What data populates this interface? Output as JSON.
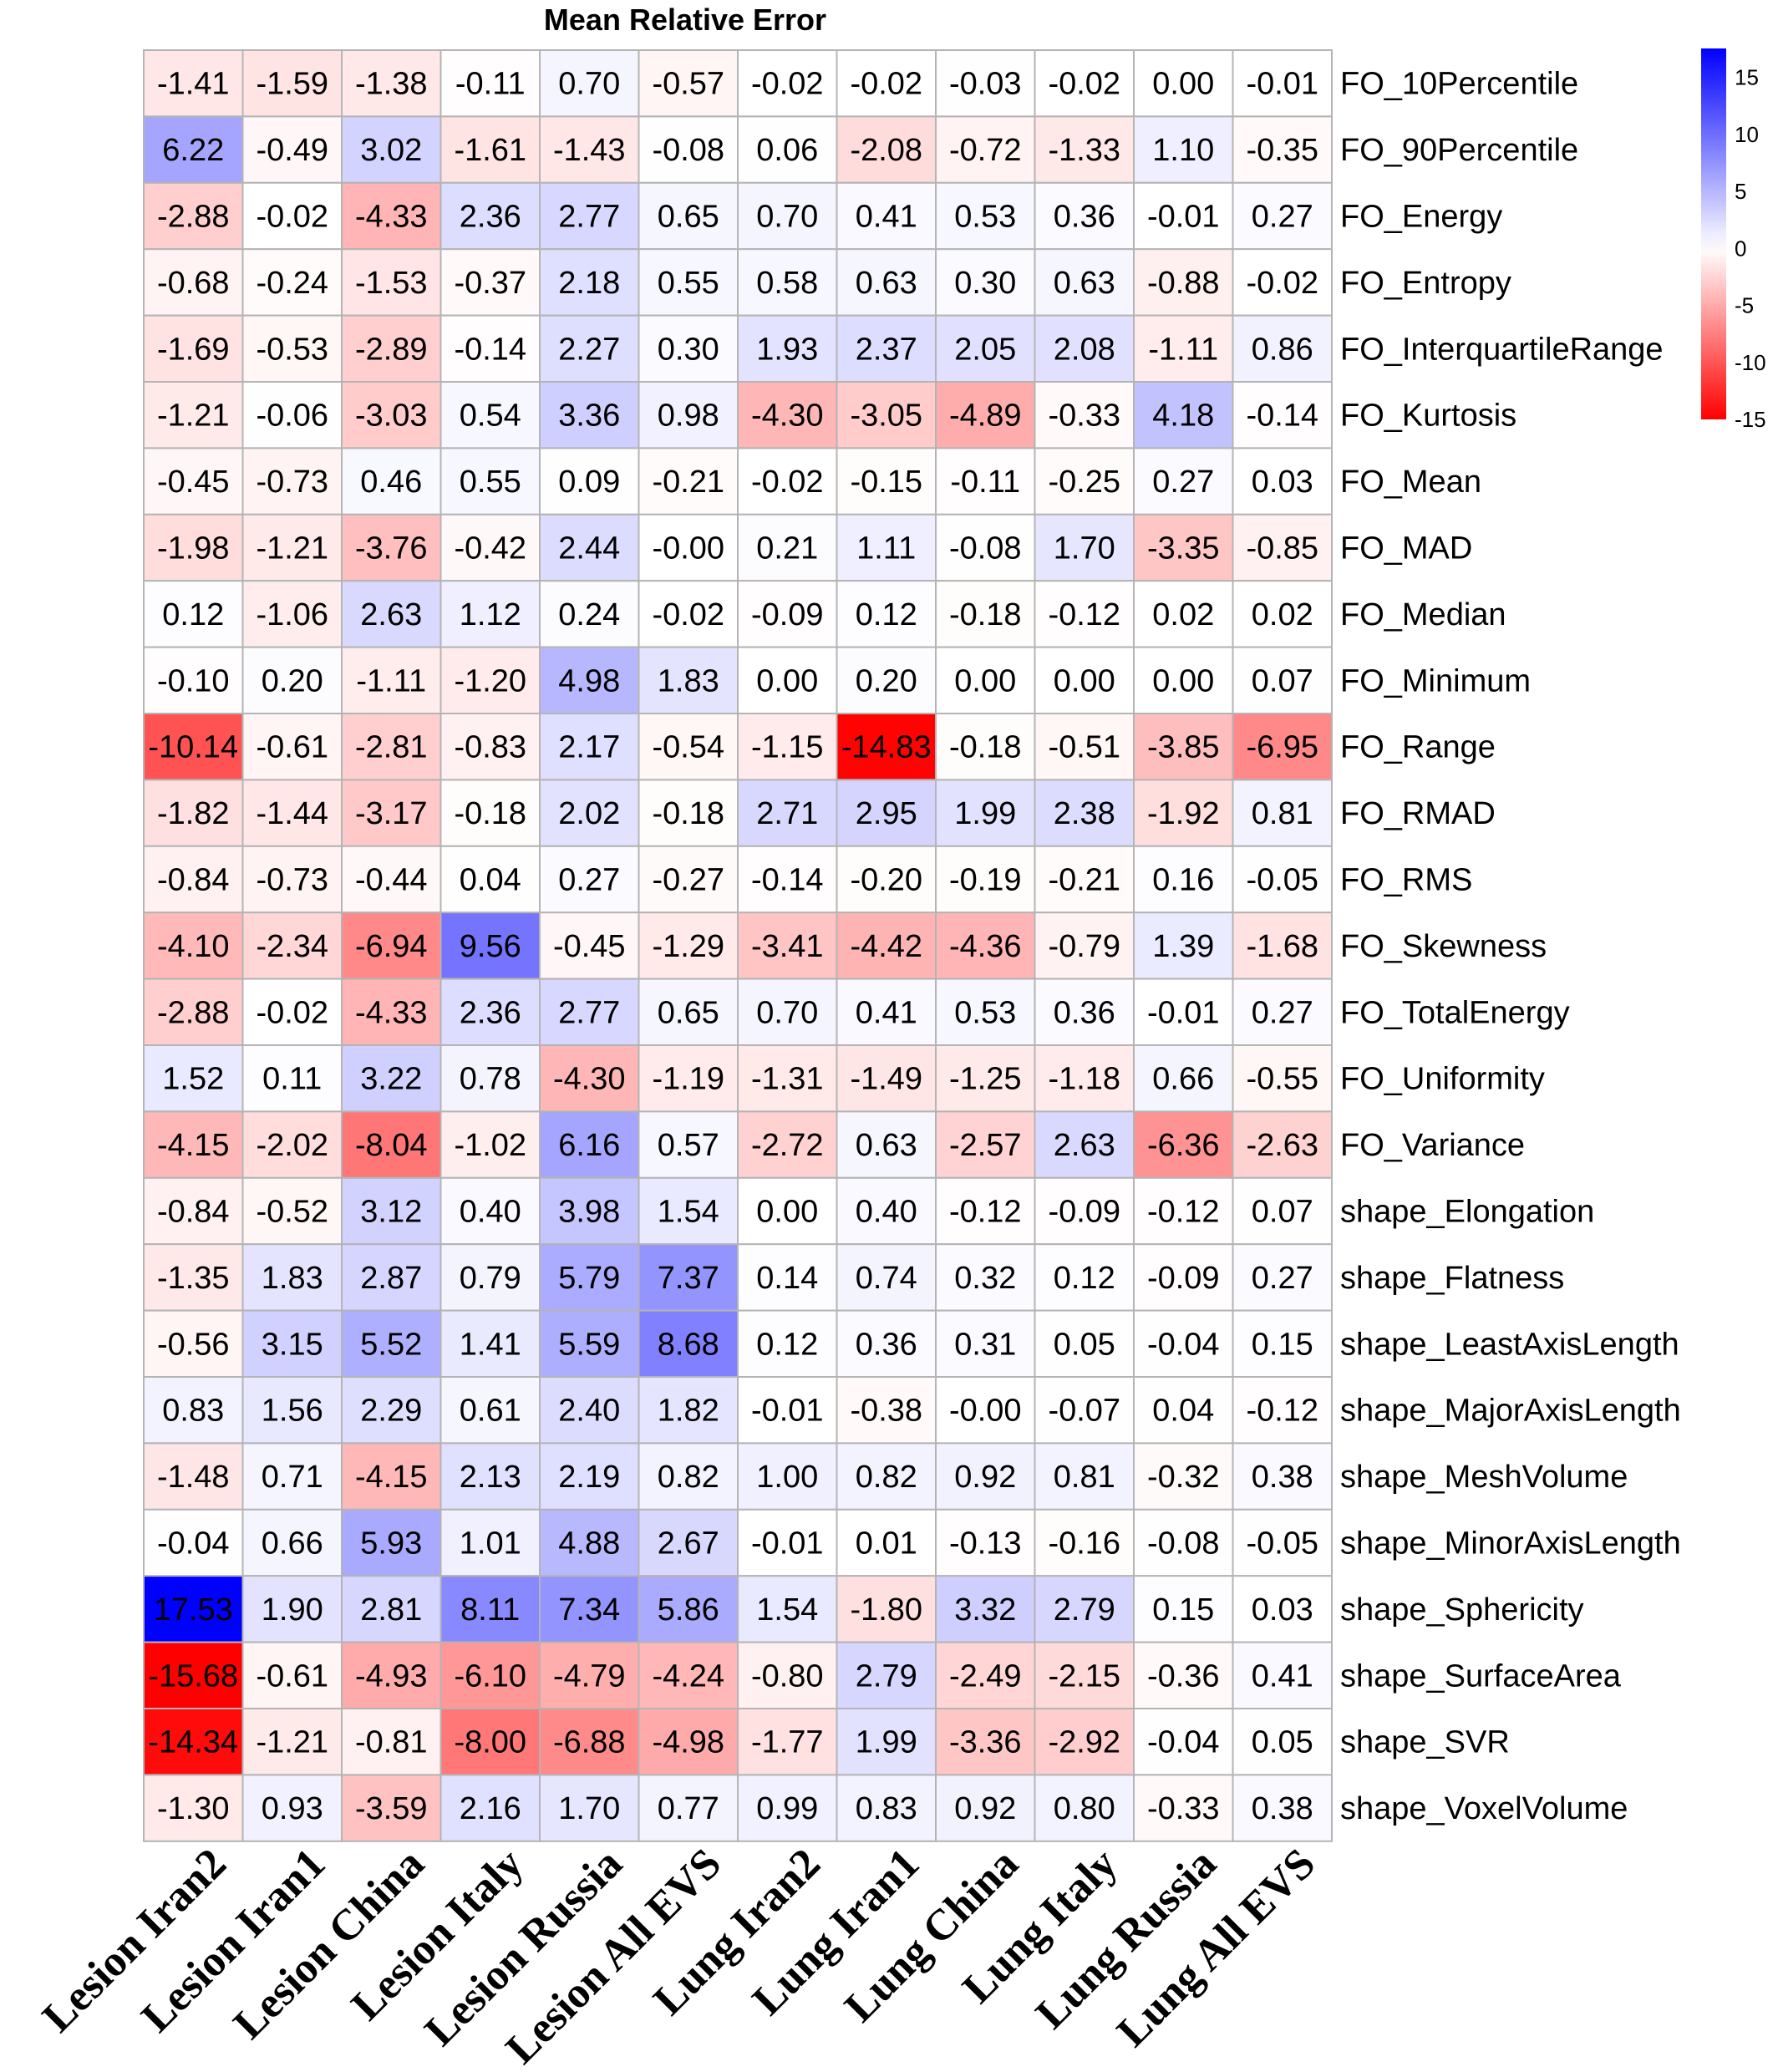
{
  "chart_data": {
    "type": "heatmap",
    "title": "Mean Relative Error",
    "columns": [
      "Lesion Iran2",
      "Lesion Iran1",
      "Lesion China",
      "Lesion Italy",
      "Lesion Russia",
      "Lesion All EVS",
      "Lung Iran2",
      "Lung Iran1",
      "Lung China",
      "Lung Italy",
      "Lung Russia",
      "Lung All EVS"
    ],
    "rows": [
      "FO_10Percentile",
      "FO_90Percentile",
      "FO_Energy",
      "FO_Entropy",
      "FO_InterquartileRange",
      "FO_Kurtosis",
      "FO_Mean",
      "FO_MAD",
      "FO_Median",
      "FO_Minimum",
      "FO_Range",
      "FO_RMAD",
      "FO_RMS",
      "FO_Skewness",
      "FO_TotalEnergy",
      "FO_Uniformity",
      "FO_Variance",
      "shape_Elongation",
      "shape_Flatness",
      "shape_LeastAxisLength",
      "shape_MajorAxisLength",
      "shape_MeshVolume",
      "shape_MinorAxisLength",
      "shape_Sphericity",
      "shape_SurfaceArea",
      "shape_SVR",
      "shape_VoxelVolume"
    ],
    "values": [
      [
        "-1.41",
        "-1.59",
        "-1.38",
        "-0.11",
        "0.70",
        "-0.57",
        "-0.02",
        "-0.02",
        "-0.03",
        "-0.02",
        "0.00",
        "-0.01"
      ],
      [
        "6.22",
        "-0.49",
        "3.02",
        "-1.61",
        "-1.43",
        "-0.08",
        "0.06",
        "-2.08",
        "-0.72",
        "-1.33",
        "1.10",
        "-0.35"
      ],
      [
        "-2.88",
        "-0.02",
        "-4.33",
        "2.36",
        "2.77",
        "0.65",
        "0.70",
        "0.41",
        "0.53",
        "0.36",
        "-0.01",
        "0.27"
      ],
      [
        "-0.68",
        "-0.24",
        "-1.53",
        "-0.37",
        "2.18",
        "0.55",
        "0.58",
        "0.63",
        "0.30",
        "0.63",
        "-0.88",
        "-0.02"
      ],
      [
        "-1.69",
        "-0.53",
        "-2.89",
        "-0.14",
        "2.27",
        "0.30",
        "1.93",
        "2.37",
        "2.05",
        "2.08",
        "-1.11",
        "0.86"
      ],
      [
        "-1.21",
        "-0.06",
        "-3.03",
        "0.54",
        "3.36",
        "0.98",
        "-4.30",
        "-3.05",
        "-4.89",
        "-0.33",
        "4.18",
        "-0.14"
      ],
      [
        "-0.45",
        "-0.73",
        "0.46",
        "0.55",
        "0.09",
        "-0.21",
        "-0.02",
        "-0.15",
        "-0.11",
        "-0.25",
        "0.27",
        "0.03"
      ],
      [
        "-1.98",
        "-1.21",
        "-3.76",
        "-0.42",
        "2.44",
        "-0.00",
        "0.21",
        "1.11",
        "-0.08",
        "1.70",
        "-3.35",
        "-0.85"
      ],
      [
        "0.12",
        "-1.06",
        "2.63",
        "1.12",
        "0.24",
        "-0.02",
        "-0.09",
        "0.12",
        "-0.18",
        "-0.12",
        "0.02",
        "0.02"
      ],
      [
        "-0.10",
        "0.20",
        "-1.11",
        "-1.20",
        "4.98",
        "1.83",
        "0.00",
        "0.20",
        "0.00",
        "0.00",
        "0.00",
        "0.07"
      ],
      [
        "-10.14",
        "-0.61",
        "-2.81",
        "-0.83",
        "2.17",
        "-0.54",
        "-1.15",
        "-14.83",
        "-0.18",
        "-0.51",
        "-3.85",
        "-6.95"
      ],
      [
        "-1.82",
        "-1.44",
        "-3.17",
        "-0.18",
        "2.02",
        "-0.18",
        "2.71",
        "2.95",
        "1.99",
        "2.38",
        "-1.92",
        "0.81"
      ],
      [
        "-0.84",
        "-0.73",
        "-0.44",
        "0.04",
        "0.27",
        "-0.27",
        "-0.14",
        "-0.20",
        "-0.19",
        "-0.21",
        "0.16",
        "-0.05"
      ],
      [
        "-4.10",
        "-2.34",
        "-6.94",
        "9.56",
        "-0.45",
        "-1.29",
        "-3.41",
        "-4.42",
        "-4.36",
        "-0.79",
        "1.39",
        "-1.68"
      ],
      [
        "-2.88",
        "-0.02",
        "-4.33",
        "2.36",
        "2.77",
        "0.65",
        "0.70",
        "0.41",
        "0.53",
        "0.36",
        "-0.01",
        "0.27"
      ],
      [
        "1.52",
        "0.11",
        "3.22",
        "0.78",
        "-4.30",
        "-1.19",
        "-1.31",
        "-1.49",
        "-1.25",
        "-1.18",
        "0.66",
        "-0.55"
      ],
      [
        "-4.15",
        "-2.02",
        "-8.04",
        "-1.02",
        "6.16",
        "0.57",
        "-2.72",
        "0.63",
        "-2.57",
        "2.63",
        "-6.36",
        "-2.63"
      ],
      [
        "-0.84",
        "-0.52",
        "3.12",
        "0.40",
        "3.98",
        "1.54",
        "0.00",
        "0.40",
        "-0.12",
        "-0.09",
        "-0.12",
        "0.07"
      ],
      [
        "-1.35",
        "1.83",
        "2.87",
        "0.79",
        "5.79",
        "7.37",
        "0.14",
        "0.74",
        "0.32",
        "0.12",
        "-0.09",
        "0.27"
      ],
      [
        "-0.56",
        "3.15",
        "5.52",
        "1.41",
        "5.59",
        "8.68",
        "0.12",
        "0.36",
        "0.31",
        "0.05",
        "-0.04",
        "0.15"
      ],
      [
        "0.83",
        "1.56",
        "2.29",
        "0.61",
        "2.40",
        "1.82",
        "-0.01",
        "-0.38",
        "-0.00",
        "-0.07",
        "0.04",
        "-0.12"
      ],
      [
        "-1.48",
        "0.71",
        "-4.15",
        "2.13",
        "2.19",
        "0.82",
        "1.00",
        "0.82",
        "0.92",
        "0.81",
        "-0.32",
        "0.38"
      ],
      [
        "-0.04",
        "0.66",
        "5.93",
        "1.01",
        "4.88",
        "2.67",
        "-0.01",
        "0.01",
        "-0.13",
        "-0.16",
        "-0.08",
        "-0.05"
      ],
      [
        "17.53",
        "1.90",
        "2.81",
        "8.11",
        "7.34",
        "5.86",
        "1.54",
        "-1.80",
        "3.32",
        "2.79",
        "0.15",
        "0.03"
      ],
      [
        "-15.68",
        "-0.61",
        "-4.93",
        "-6.10",
        "-4.79",
        "-4.24",
        "-0.80",
        "2.79",
        "-2.49",
        "-2.15",
        "-0.36",
        "0.41"
      ],
      [
        "-14.34",
        "-1.21",
        "-0.81",
        "-8.00",
        "-6.88",
        "-4.98",
        "-1.77",
        "1.99",
        "-3.36",
        "-2.92",
        "-0.04",
        "0.05"
      ],
      [
        "-1.30",
        "0.93",
        "-3.59",
        "2.16",
        "1.70",
        "0.77",
        "0.99",
        "0.83",
        "0.92",
        "0.80",
        "-0.33",
        "0.38"
      ]
    ],
    "color_scale": {
      "min": -15,
      "max": 17.53,
      "low_color": "#ff0000",
      "mid_color": "#ffffff",
      "high_color": "#0000ff",
      "ticks": [
        "15",
        "10",
        "5",
        "0",
        "-5",
        "-10",
        "-15"
      ]
    },
    "cell_border_color": "#b4b4b4",
    "legend_placement": "top-right"
  }
}
